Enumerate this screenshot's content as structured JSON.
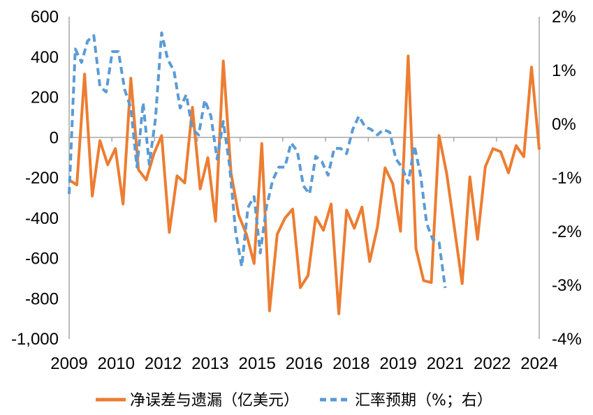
{
  "chart_data": {
    "type": "line",
    "x_categories": [
      "2009",
      "2010",
      "2012",
      "2013",
      "2015",
      "2016",
      "2018",
      "2019",
      "2021",
      "2022",
      "2024"
    ],
    "y_left": {
      "ylim": [
        -1000,
        600
      ],
      "ticks": [
        "600",
        "400",
        "200",
        "0",
        "-200",
        "-400",
        "-600",
        "-800",
        "-1,000"
      ]
    },
    "y_right": {
      "ylim": [
        -4,
        2
      ],
      "ticks": [
        "2%",
        "1%",
        "0%",
        "-1%",
        "-2%",
        "-3%",
        "-4%"
      ]
    },
    "series": [
      {
        "name": "净误差与遗漏（亿美元）",
        "axis": "left",
        "style": "solid",
        "color": "#ED7D31",
        "x_start": 2009.0,
        "x_step": 0.25,
        "values": [
          -210,
          -235,
          315,
          -290,
          -15,
          -135,
          -55,
          -330,
          295,
          -160,
          -210,
          -80,
          10,
          -470,
          -190,
          -225,
          150,
          -255,
          -100,
          -415,
          380,
          -175,
          -385,
          -480,
          -625,
          -30,
          -860,
          -480,
          -400,
          -355,
          -745,
          -685,
          -395,
          -460,
          -330,
          -875,
          -360,
          -450,
          -345,
          -615,
          -445,
          -150,
          -230,
          -465,
          405,
          -550,
          -710,
          -720,
          10,
          -180,
          -450,
          -725,
          -195,
          -505,
          -145,
          -55,
          -70,
          -175,
          -40,
          -95,
          350,
          -60
        ]
      },
      {
        "name": "汇率预期（%；右）",
        "axis": "right",
        "style": "dashed",
        "color": "#5B9BD5",
        "x_start": 2009.0,
        "x_step": 0.2,
        "values": [
          -1.3,
          1.4,
          1.15,
          1.55,
          1.65,
          0.7,
          0.6,
          1.35,
          1.35,
          0.65,
          0.3,
          -0.8,
          0.4,
          -0.75,
          0.1,
          1.7,
          1.2,
          1.0,
          0.3,
          0.55,
          -0.1,
          -0.2,
          0.45,
          0.15,
          -0.65,
          0.05,
          -0.75,
          -2.0,
          -2.65,
          -1.55,
          -1.35,
          -2.4,
          -1.55,
          -1.05,
          -0.8,
          -0.8,
          -0.35,
          -0.5,
          -1.15,
          -1.3,
          -0.6,
          -0.7,
          -0.95,
          -0.45,
          -0.45,
          -0.55,
          -0.1,
          0.15,
          -0.05,
          -0.1,
          -0.2,
          -0.1,
          -0.15,
          -0.65,
          -0.8,
          -1.1,
          -0.4,
          -0.95,
          -1.85,
          -2.15,
          -2.2,
          -3.05
        ]
      }
    ],
    "grid": false,
    "legend_position": "bottom"
  }
}
